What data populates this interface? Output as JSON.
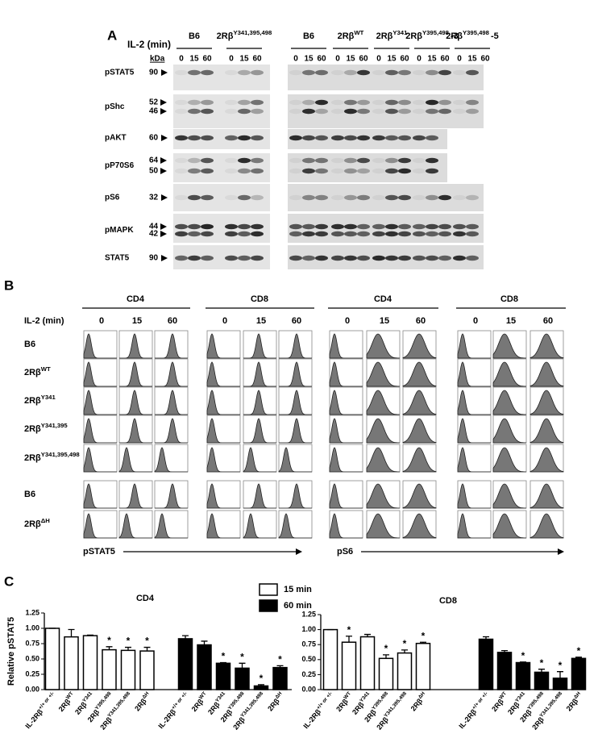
{
  "panel_a": {
    "label": "A",
    "il2_label": "IL-2 (min)",
    "kda_label": "kDa",
    "times": [
      "0",
      "15",
      "60"
    ],
    "groups": [
      {
        "base": "B6"
      },
      {
        "base": "2Rβ",
        "sup": "Y341,395,498"
      },
      {
        "base": "B6"
      },
      {
        "base": "2Rβ",
        "sup": "WT"
      },
      {
        "base": "2Rβ",
        "sup": "Y341"
      },
      {
        "base": "2Rβ",
        "sup": "Y395,498",
        "suffix": "-3"
      },
      {
        "base": "2Rβ",
        "sup": "Y395,498",
        "suffix": "-5"
      }
    ],
    "rows": [
      {
        "name": "pSTAT5",
        "kda": [
          "90"
        ]
      },
      {
        "name": "pShc",
        "kda": [
          "52",
          "46"
        ]
      },
      {
        "name": "pAKT",
        "kda": [
          "60"
        ]
      },
      {
        "name": "pP70S6",
        "kda": [
          "64",
          "50"
        ]
      },
      {
        "name": "pS6",
        "kda": [
          "32"
        ]
      },
      {
        "name": "pMAPK",
        "kda": [
          "44",
          "42"
        ]
      },
      {
        "name": "STAT5",
        "kda": [
          "90"
        ]
      }
    ]
  },
  "panel_b": {
    "label": "B",
    "il2_label": "IL-2 (min)",
    "columns": [
      "CD4",
      "CD8",
      "CD4",
      "CD8"
    ],
    "times": [
      "0",
      "15",
      "60"
    ],
    "rows": [
      "B6",
      {
        "base": "2Rβ",
        "sup": "WT"
      },
      {
        "base": "2Rβ",
        "sup": "Y341"
      },
      {
        "base": "2Rβ",
        "sup": "Y341,395"
      },
      {
        "base": "2Rβ",
        "sup": "Y341,395,498"
      },
      "B6",
      {
        "base": "2Rβ",
        "sup": "ΔH"
      }
    ],
    "x_labels": [
      "pSTAT5",
      "pS6"
    ]
  },
  "panel_c_label": "C",
  "chart_data": [
    {
      "type": "bar",
      "title": "CD4",
      "y_label": "Relative pSTAT5",
      "categories": [
        {
          "base": "IL-2Rβ",
          "sup": "+/+ or +/-"
        },
        {
          "base": "2Rβ",
          "sup": "WT"
        },
        {
          "base": "2Rβ",
          "sup": "Y341"
        },
        {
          "base": "2Rβ",
          "sup": "Y395,498"
        },
        {
          "base": "2Rβ",
          "sup": "Y341,395,498"
        },
        {
          "base": "2Rβ",
          "sup": "ΔH"
        }
      ],
      "series": [
        {
          "name": "15 min",
          "color": "#ffffff",
          "values": [
            1.0,
            0.86,
            0.88,
            0.65,
            0.64,
            0.63
          ],
          "errors": [
            0,
            0.12,
            0.01,
            0.05,
            0.05,
            0.06
          ],
          "annotations": [
            null,
            null,
            null,
            "*",
            "*",
            "*"
          ]
        },
        {
          "name": "60 min",
          "color": "#000000",
          "values": [
            0.83,
            0.73,
            0.43,
            0.35,
            0.06,
            0.36
          ],
          "errors": [
            0.05,
            0.06,
            0.01,
            0.08,
            0.02,
            0.03
          ],
          "annotations": [
            null,
            null,
            "*",
            "*",
            "*",
            "*"
          ]
        }
      ],
      "ylim": [
        0,
        1.25
      ],
      "yticks": [
        {
          "value": 0,
          "label": "0.00"
        },
        {
          "value": 0.25,
          "label": "0.25"
        },
        {
          "value": 0.5,
          "label": "0.50"
        },
        {
          "value": 0.75,
          "label": "0.75"
        },
        {
          "value": 1,
          "label": "1.00"
        },
        {
          "value": 1.25,
          "label": "1.25"
        }
      ]
    },
    {
      "type": "bar",
      "title": "CD8",
      "categories": [
        {
          "base": "IL-2Rβ",
          "sup": "+/+ or +/-"
        },
        {
          "base": "2Rβ",
          "sup": "WT"
        },
        {
          "base": "2Rβ",
          "sup": "Y341"
        },
        {
          "base": "2Rβ",
          "sup": "Y395,498"
        },
        {
          "base": "2Rβ",
          "sup": "Y341,395,498"
        },
        {
          "base": "2Rβ",
          "sup": "ΔH"
        }
      ],
      "series": [
        {
          "name": "15 min",
          "color": "#ffffff",
          "values": [
            1.0,
            0.79,
            0.88,
            0.52,
            0.61,
            0.77
          ],
          "errors": [
            0,
            0.1,
            0.04,
            0.06,
            0.05,
            0.02
          ],
          "annotations": [
            null,
            "*",
            null,
            "*",
            "*",
            "*"
          ]
        },
        {
          "name": "60 min",
          "color": "#000000",
          "values": [
            0.84,
            0.62,
            0.45,
            0.29,
            0.19,
            0.52
          ],
          "errors": [
            0.04,
            0.03,
            0.01,
            0.05,
            0.11,
            0.02
          ],
          "annotations": [
            null,
            null,
            "*",
            "*",
            "*",
            "*"
          ]
        }
      ],
      "ylim": [
        0,
        1.25
      ],
      "yticks": [
        {
          "value": 0,
          "label": "0.00"
        },
        {
          "value": 0.25,
          "label": "0.25"
        },
        {
          "value": 0.5,
          "label": "0.50"
        },
        {
          "value": 0.75,
          "label": "0.75"
        },
        {
          "value": 1,
          "label": "1.00"
        },
        {
          "value": 1.25,
          "label": "1.25"
        }
      ]
    }
  ]
}
